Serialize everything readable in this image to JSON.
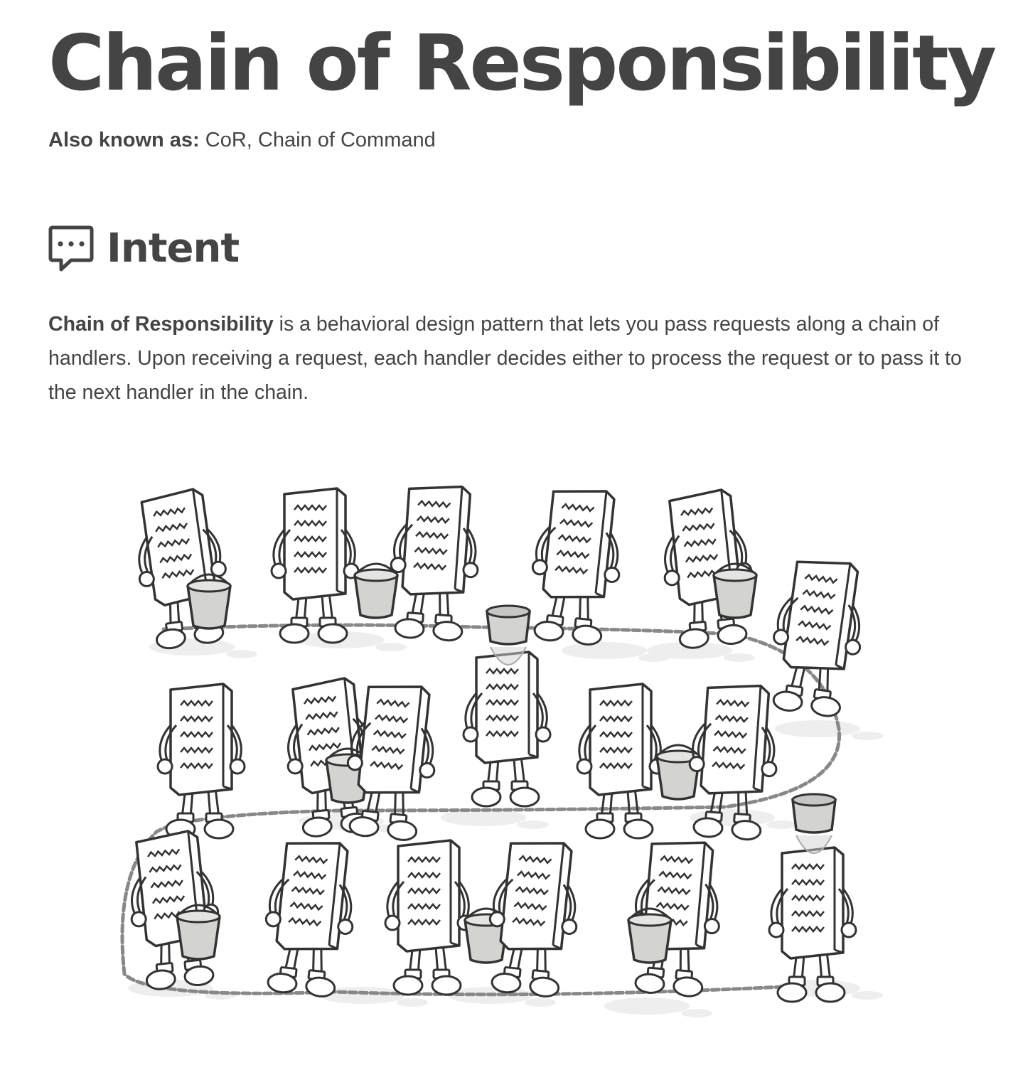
{
  "title": "Chain of Responsibility",
  "also_known_as": {
    "label": "Also known as:",
    "value": "CoR, Chain of Command"
  },
  "intent": {
    "icon": "speech-bubble-ellipsis-icon",
    "heading": "Intent",
    "term": "Chain of Responsibility",
    "text": "is a behavioral design pattern that lets you pass requests along a chain of handlers. Upon receiving a request, each handler decides either to process the request or to pass it to the next handler in the chain."
  },
  "illustration": {
    "type": "cartoon",
    "characters_count": 18,
    "colors": {
      "stroke": "#333333",
      "bucket": "#d3d3d0",
      "puddle": "#eeeeee",
      "chain": "#888888"
    }
  }
}
